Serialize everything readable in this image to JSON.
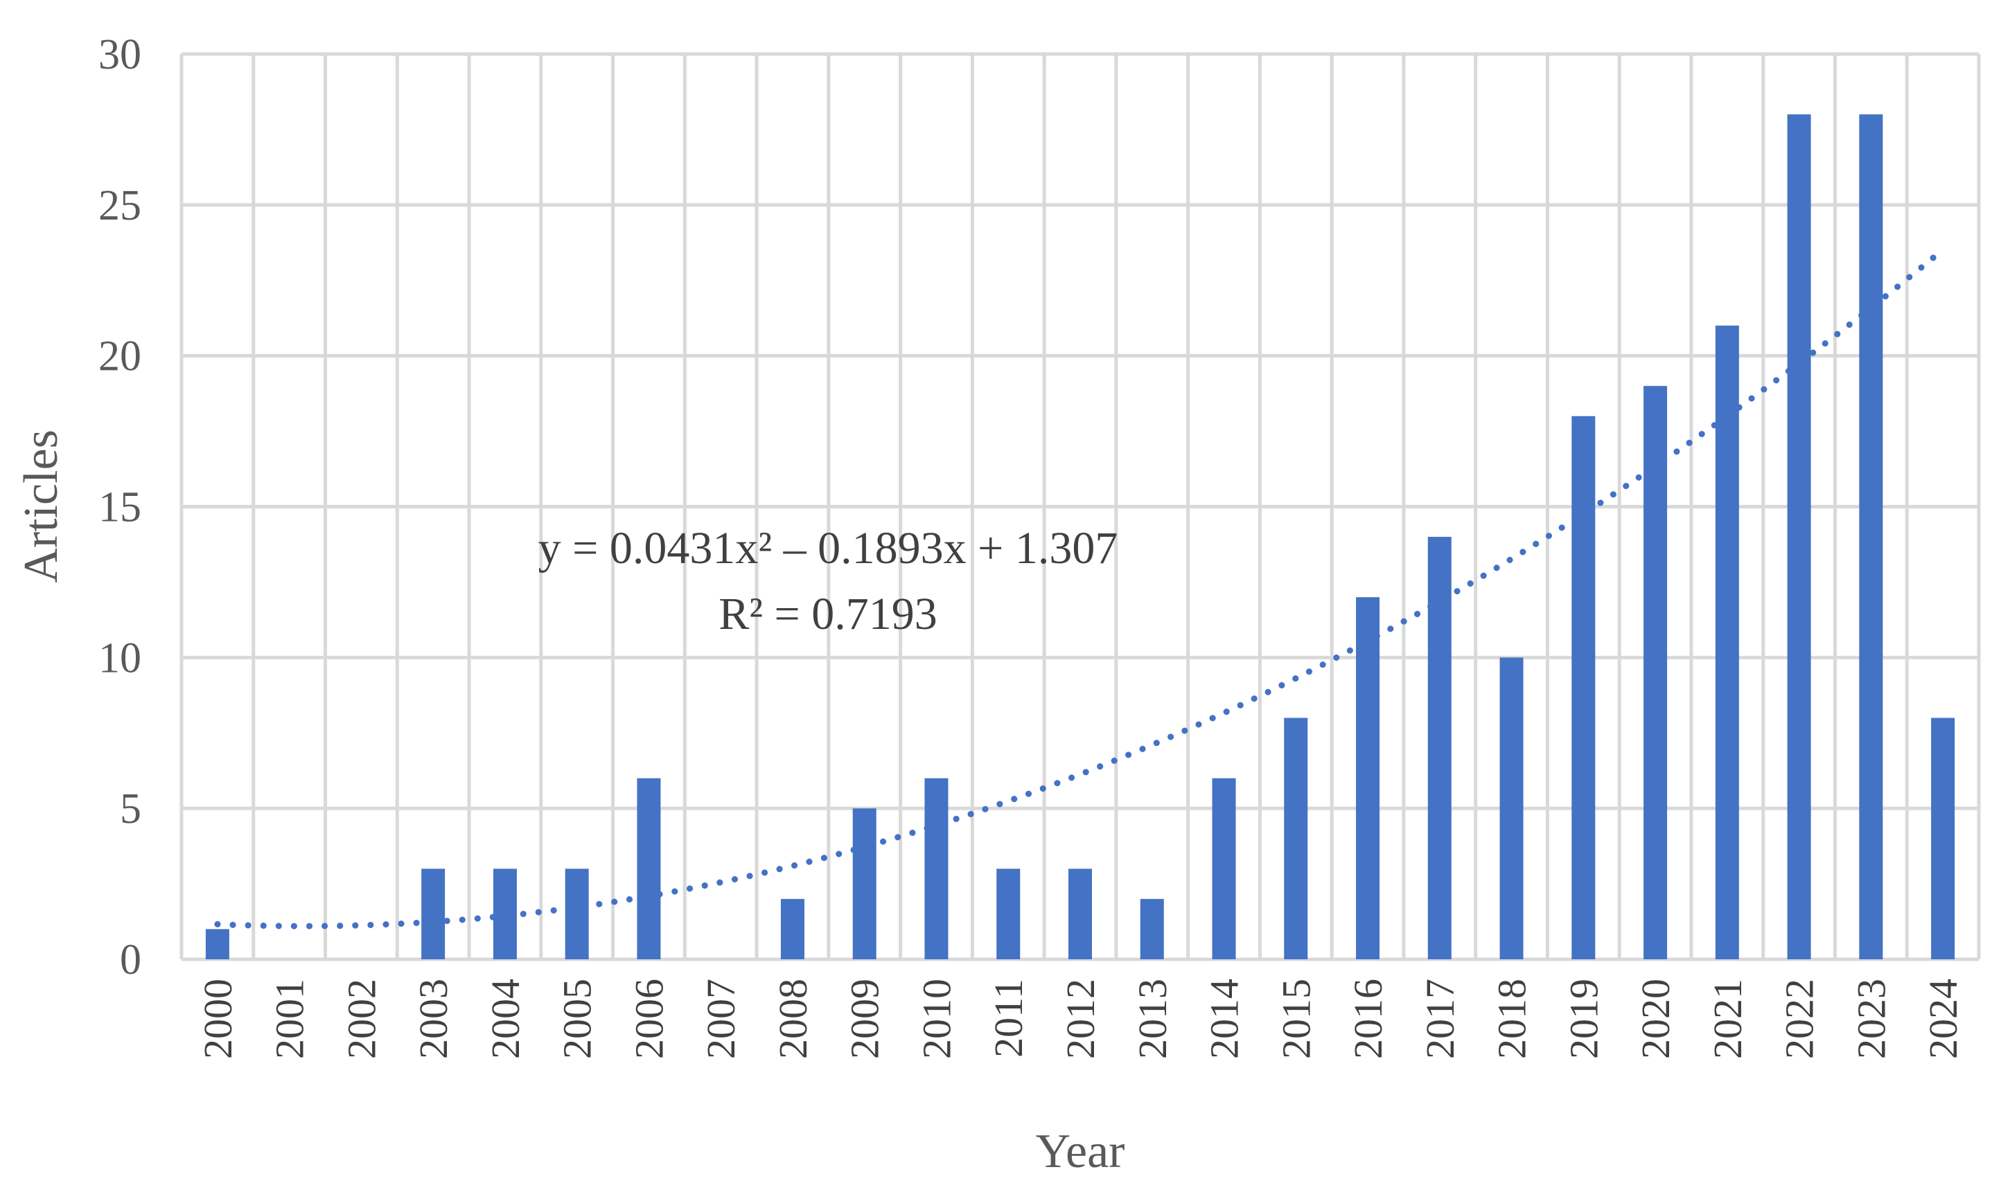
{
  "chart_data": {
    "type": "bar",
    "xlabel": "Year",
    "ylabel": "Articles",
    "ylim": [
      0,
      30
    ],
    "yticks": [
      0,
      5,
      10,
      15,
      20,
      25,
      30
    ],
    "grid": true,
    "categories": [
      "2000",
      "2001",
      "2002",
      "2003",
      "2004",
      "2005",
      "2006",
      "2007",
      "2008",
      "2009",
      "2010",
      "2011",
      "2012",
      "2013",
      "2014",
      "2015",
      "2016",
      "2017",
      "2018",
      "2019",
      "2020",
      "2021",
      "2022",
      "2023",
      "2024"
    ],
    "values": [
      1,
      0,
      0,
      3,
      3,
      3,
      6,
      0,
      2,
      5,
      6,
      3,
      3,
      2,
      6,
      8,
      12,
      14,
      10,
      18,
      19,
      21,
      28,
      28,
      8
    ],
    "trendline": {
      "type": "polynomial",
      "order": 2,
      "coefficients": [
        0.0431,
        -0.1893,
        1.307
      ],
      "equation": "y = 0.0431x² – 0.1893x + 1.307",
      "r_squared": "R² = 0.7193",
      "style": "dotted"
    },
    "colors": {
      "bar": "#4472C4",
      "trend": "#4472C4",
      "grid": "#D9D9D9"
    }
  }
}
